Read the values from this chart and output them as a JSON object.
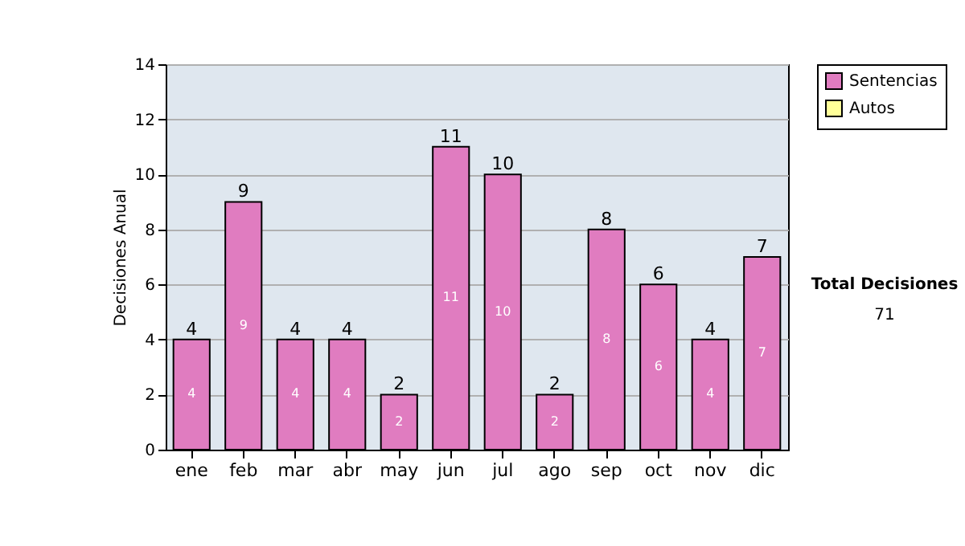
{
  "chart_data": {
    "type": "bar",
    "ylabel": "Decisiones Anual",
    "categories": [
      "ene",
      "feb",
      "mar",
      "abr",
      "may",
      "jun",
      "jul",
      "ago",
      "sep",
      "oct",
      "nov",
      "dic"
    ],
    "series": [
      {
        "name": "Sentencias",
        "color": "#e07cc0",
        "values": [
          4,
          9,
          4,
          4,
          2,
          11,
          10,
          2,
          8,
          6,
          4,
          7
        ],
        "value_labels": [
          "4",
          "9",
          "4",
          "4",
          "2",
          "11",
          "10",
          "2",
          "8",
          "6",
          "4",
          "7"
        ]
      },
      {
        "name": "Autos",
        "color": "#ffff99",
        "values": [
          null,
          null,
          null,
          null,
          null,
          null,
          null,
          null,
          null,
          null,
          null,
          null
        ]
      }
    ],
    "totals": [
      "4",
      "9",
      "4",
      "4",
      "2",
      "11",
      "10",
      "2",
      "8",
      "6",
      "4",
      "7"
    ],
    "ylim": [
      0,
      14
    ],
    "yticks": [
      0,
      2,
      4,
      6,
      8,
      10,
      12,
      14
    ],
    "grid": "y",
    "legend": "right",
    "annotations": [
      "Total Decisiones",
      "71"
    ]
  }
}
